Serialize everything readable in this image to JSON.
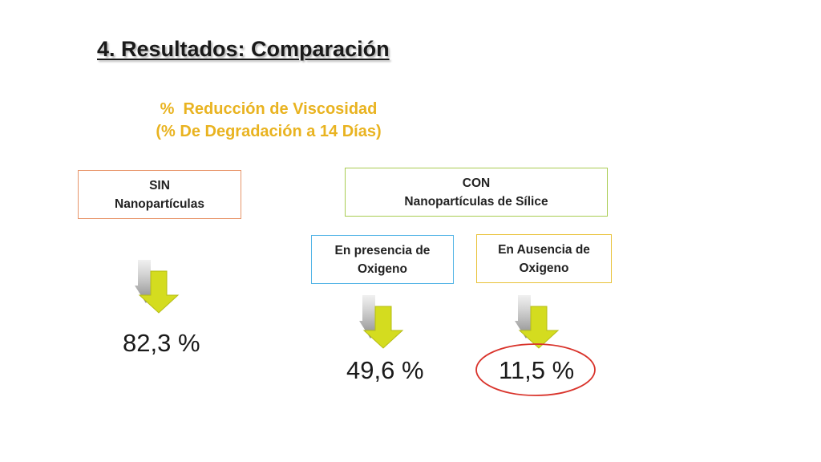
{
  "slide": {
    "title": "4. Resultados: Comparación",
    "subtitle_line1": "%  Reducción de Viscosidad",
    "subtitle_line2": "(% De Degradación a 14 Días)"
  },
  "groups": {
    "sin": {
      "line1": "SIN",
      "line2": "Nanopartículas",
      "value": "82,3 %"
    },
    "con": {
      "line1": "CON",
      "line2": "Nanopartículas de Sílice"
    },
    "presencia": {
      "line1": "En presencia de",
      "line2": "Oxigeno",
      "value": "49,6 %"
    },
    "ausencia": {
      "line1": "En Ausencia de",
      "line2": "Oxigeno",
      "value": "11,5 %"
    }
  },
  "colors": {
    "subtitle": "#e9b320",
    "sin_border": "#e8956a",
    "con_border": "#a9cc52",
    "presencia_border": "#52b4e6",
    "ausencia_border": "#e9c239",
    "arrow_fill": "#d4dc1f",
    "ring": "#d9332b"
  },
  "icons": {
    "arrow": "down-arrow-icon",
    "highlight": "ellipse-highlight"
  }
}
